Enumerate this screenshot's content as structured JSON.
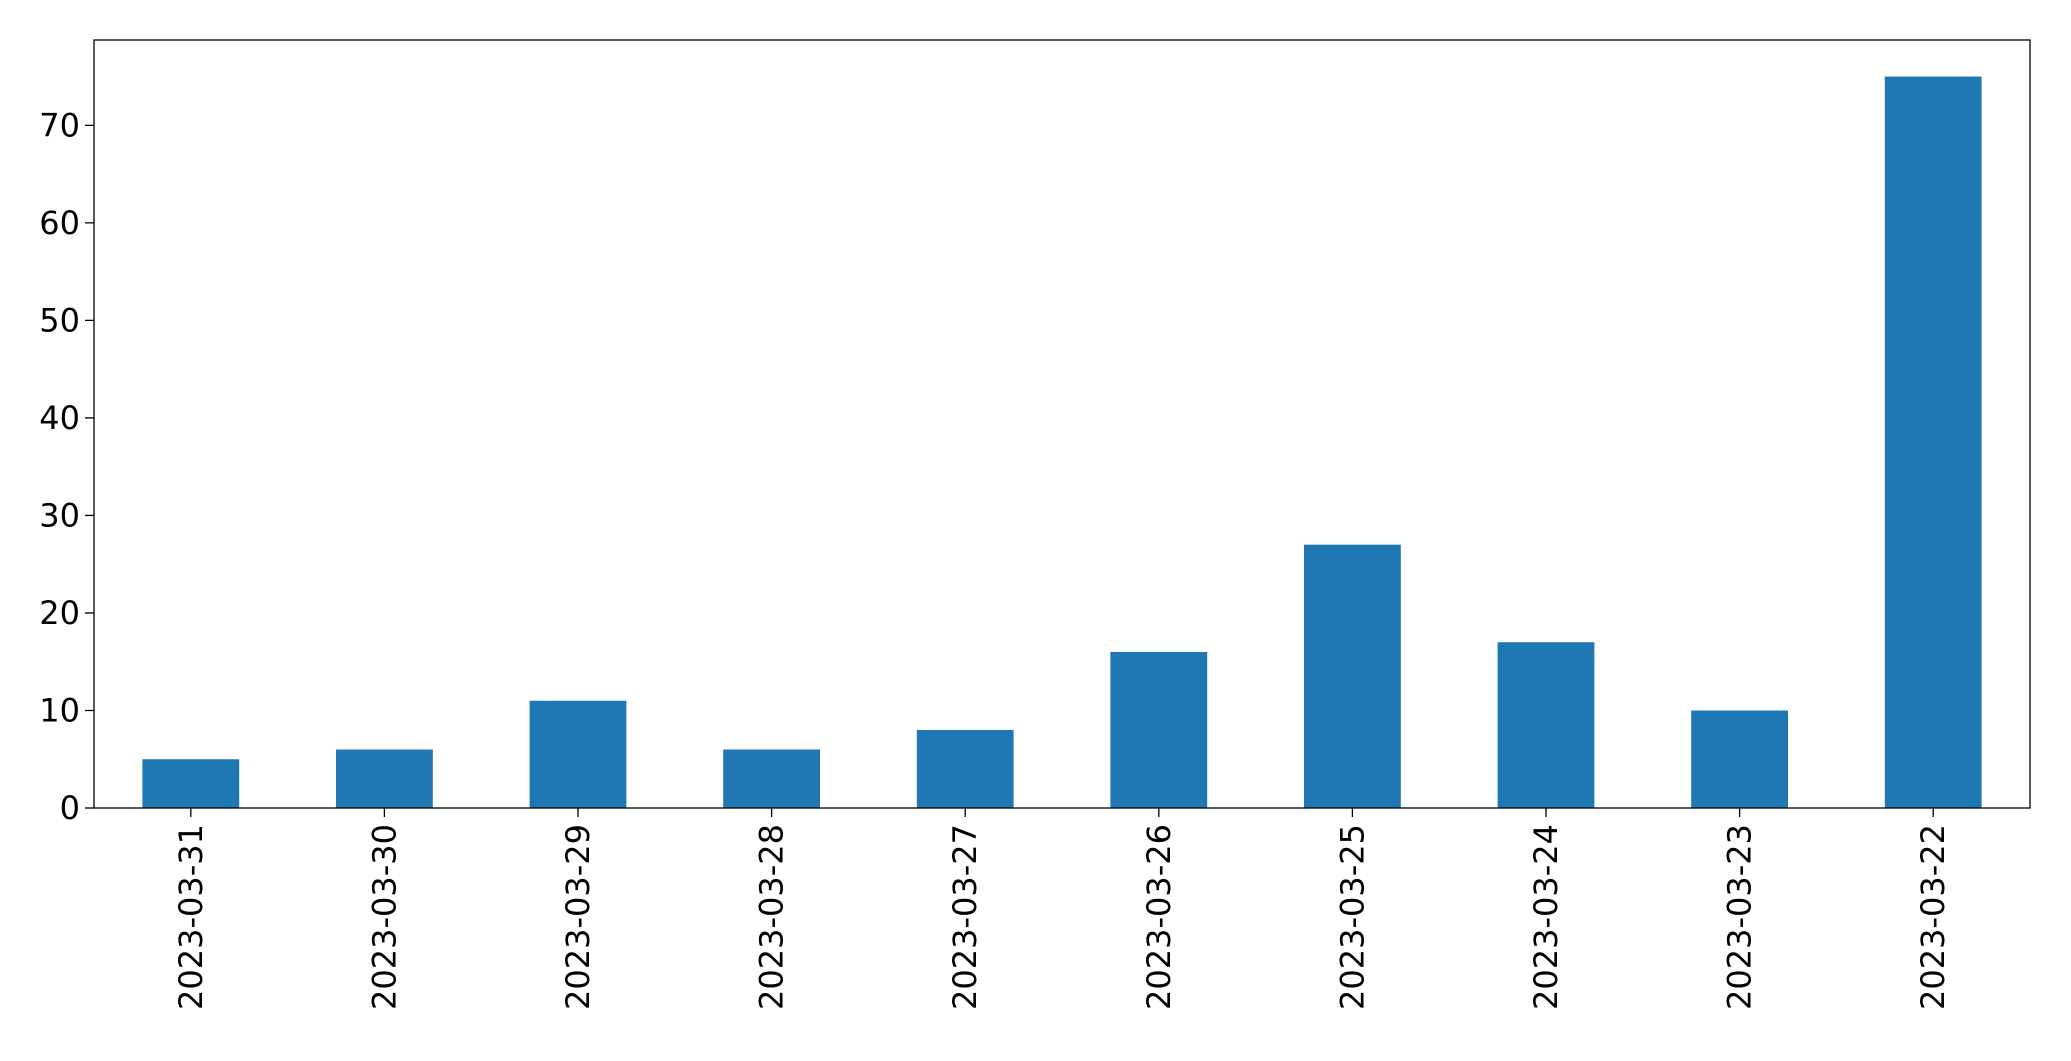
{
  "chart_data": {
    "type": "bar",
    "categories": [
      "2023-03-31",
      "2023-03-30",
      "2023-03-29",
      "2023-03-28",
      "2023-03-27",
      "2023-03-26",
      "2023-03-25",
      "2023-03-24",
      "2023-03-23",
      "2023-03-22"
    ],
    "values": [
      5,
      6,
      11,
      6,
      8,
      16,
      27,
      17,
      10,
      75
    ],
    "color": "#1f77b4",
    "ylim": [
      0,
      78.75
    ],
    "yticks": [
      0,
      10,
      20,
      30,
      40,
      50,
      60,
      70
    ],
    "grid": false
  }
}
